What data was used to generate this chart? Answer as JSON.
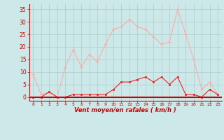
{
  "hours": [
    0,
    1,
    2,
    3,
    4,
    5,
    6,
    7,
    8,
    9,
    10,
    11,
    12,
    13,
    14,
    15,
    16,
    17,
    18,
    19,
    20,
    21,
    22,
    23
  ],
  "vent_moyen": [
    0,
    0,
    2,
    0,
    0,
    1,
    1,
    1,
    1,
    1,
    3,
    6,
    6,
    7,
    8,
    6,
    8,
    5,
    8,
    1,
    1,
    0,
    3,
    1
  ],
  "rafales": [
    9,
    1,
    2,
    0,
    12,
    19,
    12,
    17,
    14,
    21,
    27,
    28,
    31,
    28,
    27,
    24,
    21,
    22,
    35,
    25,
    15,
    3,
    6,
    1
  ],
  "bg_color": "#cce8e8",
  "grid_color": "#aacccc",
  "line_color_moyen": "#ee2222",
  "line_color_rafales": "#ffaaaa",
  "xlabel": "Vent moyen/en rafales ( km/h )",
  "yticks": [
    0,
    5,
    10,
    15,
    20,
    25,
    30,
    35
  ],
  "ylim": [
    -1.5,
    37
  ],
  "xlim": [
    -0.5,
    23.5
  ]
}
